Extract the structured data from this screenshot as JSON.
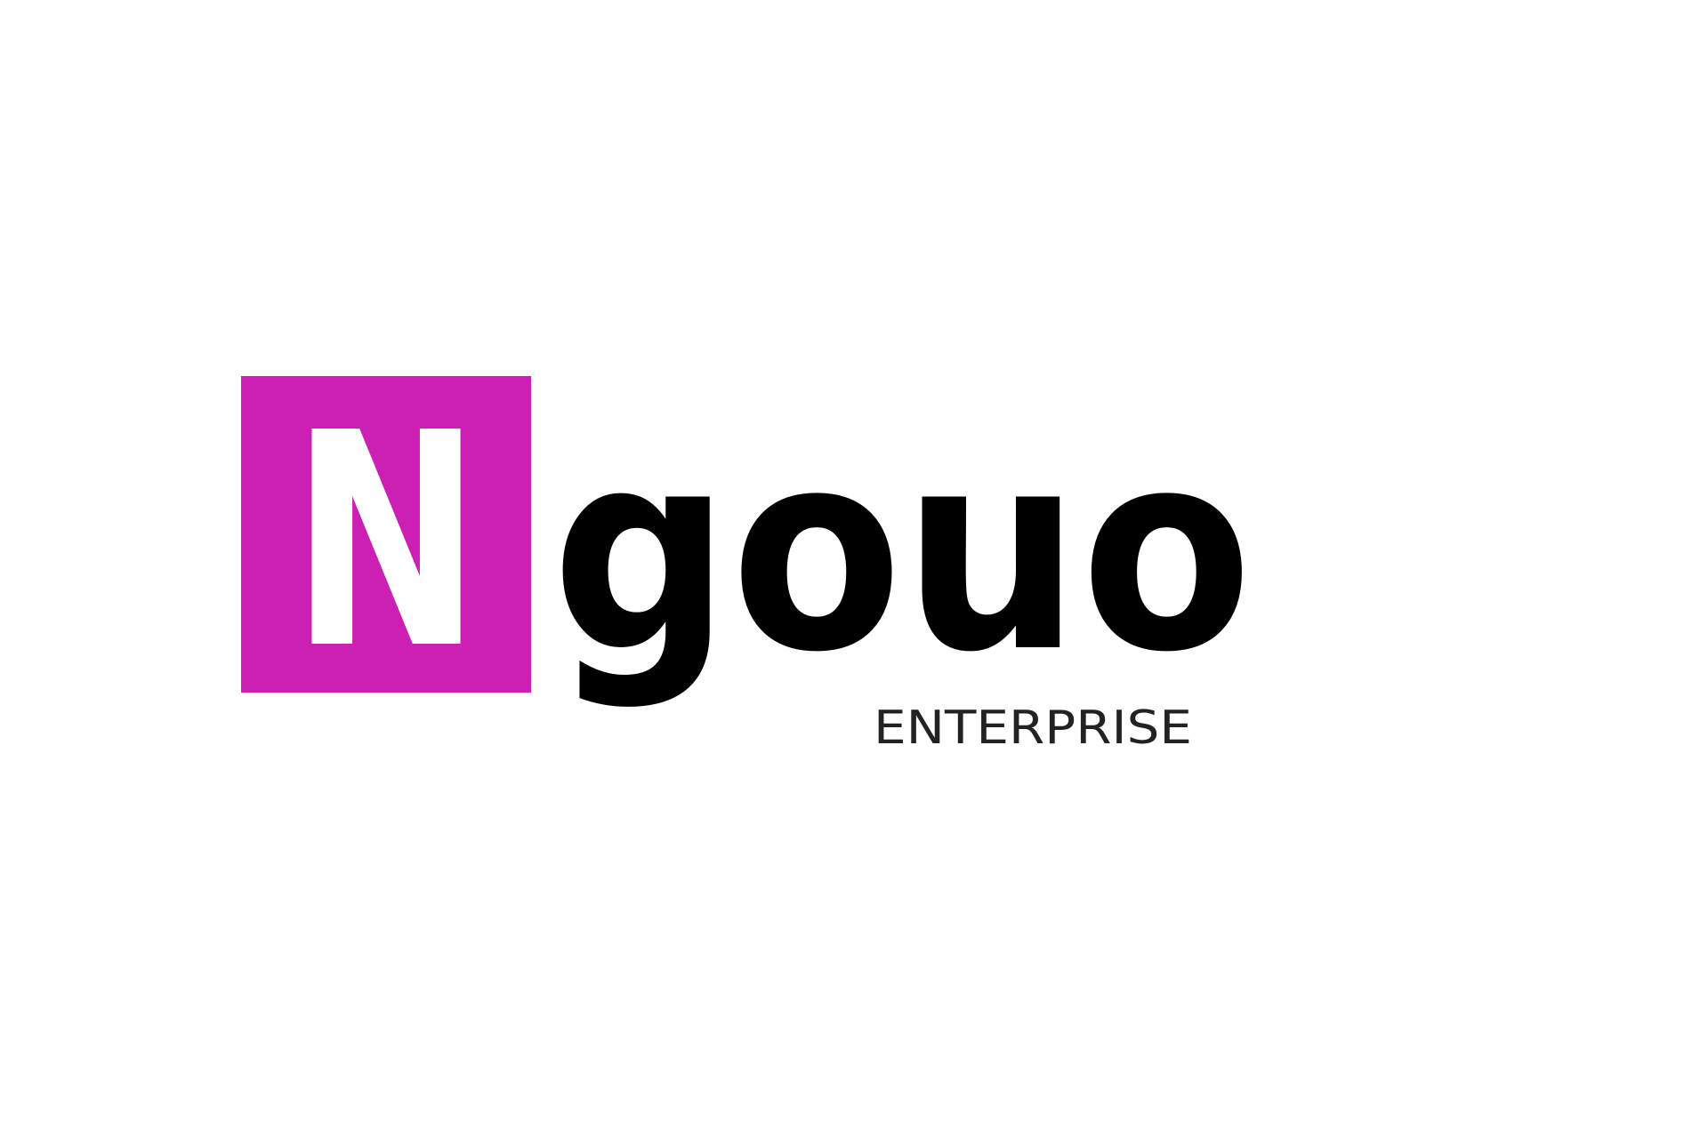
{
  "logo": {
    "initial": "N",
    "wordmark": "gouo",
    "tagline": "ENTERPRISE",
    "colors": {
      "accent": "#CC1FB4",
      "initial_text": "#FFFFFF",
      "wordmark_text": "#000000",
      "tagline_text": "#222222",
      "background": "#FFFFFF"
    }
  }
}
